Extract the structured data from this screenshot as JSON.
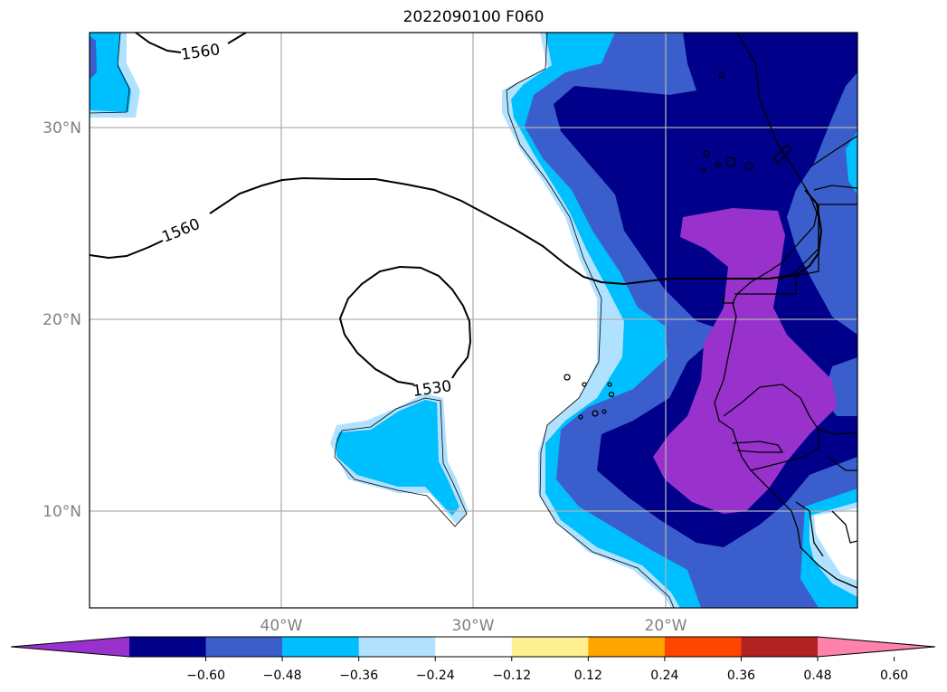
{
  "title": "2022090100 F060",
  "map": {
    "lat_ticks": [
      "30°N",
      "20°N",
      "10°N"
    ],
    "lon_ticks": [
      "40°W",
      "30°W",
      "20°W"
    ],
    "contour_labels": [
      "1560",
      "1560",
      "1530"
    ]
  },
  "colorbar": {
    "colors": [
      "#9932cc",
      "#00008b",
      "#3a5fcd",
      "#00bfff",
      "#b0e2ff",
      "#ffffff",
      "#fff08f",
      "#ffa500",
      "#ff4500",
      "#b22222",
      "#ff82ab"
    ],
    "tick_labels": [
      "−0.60",
      "−0.48",
      "−0.36",
      "−0.24",
      "−0.12",
      "0.12",
      "0.24",
      "0.36",
      "0.48",
      "0.60"
    ]
  },
  "fill_colors": {
    "purple": "#9932cc",
    "navy": "#00008b",
    "royal": "#3a5fcd",
    "sky": "#00bfff",
    "pale": "#b0e2ff"
  }
}
